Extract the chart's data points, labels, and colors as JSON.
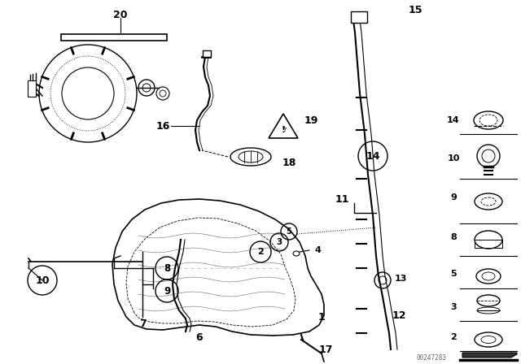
{
  "bg_color": "#ffffff",
  "fig_width": 6.4,
  "fig_height": 4.48,
  "watermark": "00247283",
  "lc": "#000000"
}
